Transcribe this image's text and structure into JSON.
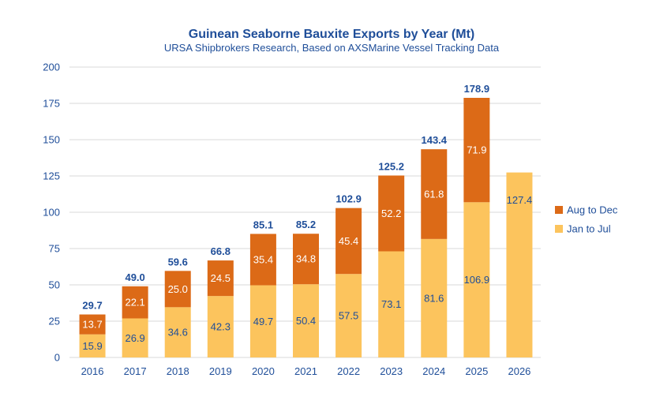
{
  "chart_data": {
    "type": "bar",
    "stacked": true,
    "title": "Guinean Seaborne Bauxite Exports by Year (Mt)",
    "subtitle": "URSA Shipbrokers Research, Based on AXSMarine Vessel Tracking Data",
    "xlabel": "",
    "ylabel": "",
    "ylim": [
      0,
      200
    ],
    "yticks": [
      "0",
      "25",
      "50",
      "75",
      "100",
      "125",
      "150",
      "175",
      "200"
    ],
    "grid": true,
    "legend_position": "right",
    "categories": [
      "2016",
      "2017",
      "2018",
      "2019",
      "2020",
      "2021",
      "2022",
      "2023",
      "2024",
      "2025",
      "2026"
    ],
    "series": [
      {
        "name": "Jan to Jul",
        "color": "#fcc45d",
        "values": [
          15.9,
          26.9,
          34.6,
          42.3,
          49.7,
          50.4,
          57.5,
          73.1,
          81.6,
          106.9,
          127.4
        ],
        "labels": [
          "15.9",
          "26.9",
          "34.6",
          "42.3",
          "49.7",
          "50.4",
          "57.5",
          "73.1",
          "81.6",
          "106.9",
          "127.4"
        ]
      },
      {
        "name": "Aug to Dec",
        "color": "#dc6a17",
        "values": [
          13.7,
          22.1,
          25.0,
          24.5,
          35.4,
          34.8,
          45.4,
          52.2,
          61.8,
          71.9,
          null
        ],
        "labels": [
          "13.7",
          "22.1",
          "25.0",
          "24.5",
          "35.4",
          "34.8",
          "45.4",
          "52.2",
          "61.8",
          "71.9",
          ""
        ]
      }
    ],
    "totals": [
      "29.7",
      "49.0",
      "59.6",
      "66.8",
      "85.1",
      "85.2",
      "102.9",
      "125.2",
      "143.4",
      "178.9",
      ""
    ],
    "legend": [
      "Aug to Dec",
      "Jan to Jul"
    ],
    "colors": {
      "title": "#1f4e99",
      "axis_text": "#1f4e99",
      "total_text": "#1f4e99",
      "label_on_light": "#1f4e99",
      "label_on_dark": "#ffffff",
      "grid": "#d9d9d9"
    }
  }
}
